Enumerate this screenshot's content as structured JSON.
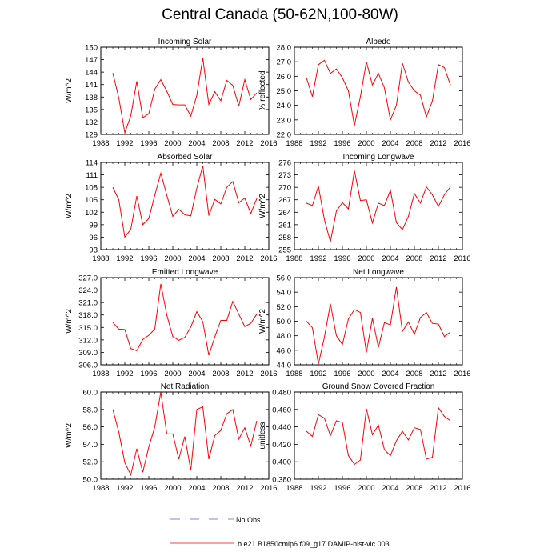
{
  "figure": {
    "title": "Central Canada (50-62N,100-80W)"
  },
  "legend": {
    "obs_label": "No Obs",
    "model_label": "b.e21.B1850cmip6.f09_g17.DAMIP-hist-vlc.003",
    "obs_color": "#6a5acd",
    "model_color": "#ff0000"
  },
  "chart_data": [
    {
      "type": "line",
      "title": "Incoming Solar",
      "ylabel": "W/m^2",
      "xlim": [
        1988,
        2016
      ],
      "xticks": [
        1988,
        1992,
        1996,
        2000,
        2004,
        2008,
        2012,
        2016
      ],
      "ylim": [
        129,
        150
      ],
      "yticks": [
        "129",
        "132",
        "135",
        "138",
        "141",
        "144",
        "147",
        "150"
      ],
      "x": [
        1990,
        1991,
        1992,
        1993,
        1994,
        1995,
        1996,
        1997,
        1998,
        1999,
        2000,
        2001,
        2002,
        2003,
        2004,
        2005,
        2006,
        2007,
        2008,
        2009,
        2010,
        2011,
        2012,
        2013,
        2014
      ],
      "values": [
        143.8,
        137.8,
        129.4,
        133.5,
        141.8,
        133.0,
        134.0,
        139.9,
        142.2,
        139.4,
        136.2,
        136.1,
        136.1,
        133.4,
        138.4,
        147.4,
        136.2,
        139.3,
        137.1,
        142.0,
        140.8,
        135.8,
        142.2,
        137.4,
        139.0
      ]
    },
    {
      "type": "line",
      "title": "Albedo",
      "ylabel": "% reflected",
      "xlim": [
        1988,
        2016
      ],
      "xticks": [
        1988,
        1992,
        1996,
        2000,
        2004,
        2008,
        2012,
        2016
      ],
      "ylim": [
        22.0,
        28.0
      ],
      "yticks": [
        "22.0",
        "23.0",
        "24.0",
        "25.0",
        "26.0",
        "27.0",
        "28.0"
      ],
      "x": [
        1990,
        1991,
        1992,
        1993,
        1994,
        1995,
        1996,
        1997,
        1998,
        1999,
        2000,
        2001,
        2002,
        2003,
        2004,
        2005,
        2006,
        2007,
        2008,
        2009,
        2010,
        2011,
        2012,
        2013,
        2014
      ],
      "values": [
        25.9,
        24.6,
        26.8,
        27.1,
        26.2,
        26.5,
        25.9,
        25.0,
        22.6,
        24.6,
        27.0,
        25.4,
        26.2,
        25.2,
        23.0,
        24.0,
        26.9,
        25.6,
        25.0,
        24.7,
        23.2,
        24.3,
        26.8,
        26.6,
        25.4
      ]
    },
    {
      "type": "line",
      "title": "Absorbed Solar",
      "ylabel": "W/m^2",
      "xlim": [
        1988,
        2016
      ],
      "xticks": [
        1988,
        1992,
        1996,
        2000,
        2004,
        2008,
        2012,
        2016
      ],
      "ylim": [
        93,
        114
      ],
      "yticks": [
        "93",
        "96",
        "99",
        "102",
        "105",
        "108",
        "111",
        "114"
      ],
      "x": [
        1990,
        1991,
        1992,
        1993,
        1994,
        1995,
        1996,
        1997,
        1998,
        1999,
        2000,
        2001,
        2002,
        2003,
        2004,
        2005,
        2006,
        2007,
        2008,
        2009,
        2010,
        2011,
        2012,
        2013,
        2014
      ],
      "values": [
        108.0,
        105.0,
        96.0,
        97.9,
        105.9,
        99.0,
        100.5,
        106.1,
        111.4,
        106.1,
        101.0,
        102.7,
        101.4,
        101.1,
        107.8,
        113.2,
        101.2,
        105.1,
        104.0,
        108.0,
        109.4,
        104.3,
        105.4,
        101.7,
        105.3
      ]
    },
    {
      "type": "line",
      "title": "Incoming Longwave",
      "ylabel": "W/m^2",
      "xlim": [
        1988,
        2016
      ],
      "xticks": [
        1988,
        1992,
        1996,
        2000,
        2004,
        2008,
        2012,
        2016
      ],
      "ylim": [
        255,
        276
      ],
      "yticks": [
        "255",
        "258",
        "261",
        "264",
        "267",
        "270",
        "273",
        "276"
      ],
      "x": [
        1990,
        1991,
        1992,
        1993,
        1994,
        1995,
        1996,
        1997,
        1998,
        1999,
        2000,
        2001,
        2002,
        2003,
        2004,
        2005,
        2006,
        2007,
        2008,
        2009,
        2010,
        2011,
        2012,
        2013,
        2014
      ],
      "values": [
        266.2,
        265.6,
        270.3,
        262.2,
        256.9,
        264.3,
        266.3,
        264.8,
        274.0,
        266.8,
        267.0,
        261.4,
        266.2,
        265.6,
        269.3,
        261.5,
        259.8,
        263.0,
        268.5,
        266.2,
        270.1,
        268.2,
        265.4,
        268.2,
        270.1
      ]
    },
    {
      "type": "line",
      "title": "Emitted Longwave",
      "ylabel": "W/m^2",
      "xlim": [
        1988,
        2016
      ],
      "xticks": [
        1988,
        1992,
        1996,
        2000,
        2004,
        2008,
        2012,
        2016
      ],
      "ylim": [
        306.0,
        327.0
      ],
      "yticks": [
        "306.0",
        "309.0",
        "312.0",
        "315.0",
        "318.0",
        "321.0",
        "324.0",
        "327.0"
      ],
      "x": [
        1990,
        1991,
        1992,
        1993,
        1994,
        1995,
        1996,
        1997,
        1998,
        1999,
        2000,
        2001,
        2002,
        2003,
        2004,
        2005,
        2006,
        2007,
        2008,
        2009,
        2010,
        2011,
        2012,
        2013,
        2014
      ],
      "values": [
        316.2,
        314.6,
        314.5,
        309.9,
        309.4,
        312.1,
        313.1,
        314.6,
        325.5,
        318.0,
        312.8,
        311.9,
        312.6,
        315.1,
        318.8,
        316.4,
        308.3,
        312.7,
        316.7,
        316.7,
        321.3,
        318.2,
        315.2,
        316.0,
        318.2
      ]
    },
    {
      "type": "line",
      "title": "Net Longwave",
      "ylabel": "W/m^2",
      "xlim": [
        1988,
        2016
      ],
      "xticks": [
        1988,
        1992,
        1996,
        2000,
        2004,
        2008,
        2012,
        2016
      ],
      "ylim": [
        44.0,
        56.0
      ],
      "yticks": [
        "44.0",
        "46.0",
        "48.0",
        "50.0",
        "52.0",
        "54.0",
        "56.0"
      ],
      "x": [
        1990,
        1991,
        1992,
        1993,
        1994,
        1995,
        1996,
        1997,
        1998,
        1999,
        2000,
        2001,
        2002,
        2003,
        2004,
        2005,
        2006,
        2007,
        2008,
        2009,
        2010,
        2011,
        2012,
        2013,
        2014
      ],
      "values": [
        50.0,
        49.1,
        44.1,
        47.8,
        52.4,
        48.0,
        46.8,
        50.3,
        51.6,
        51.2,
        45.7,
        50.4,
        46.4,
        49.8,
        49.5,
        54.7,
        48.6,
        49.9,
        48.2,
        50.5,
        51.2,
        49.7,
        49.6,
        47.9,
        48.5
      ]
    },
    {
      "type": "line",
      "title": "Net Radiation",
      "ylabel": "W/m^2",
      "xlim": [
        1988,
        2016
      ],
      "xticks": [
        1988,
        1992,
        1996,
        2000,
        2004,
        2008,
        2012,
        2016
      ],
      "ylim": [
        50.0,
        60.0
      ],
      "yticks": [
        "50.0",
        "52.0",
        "54.0",
        "56.0",
        "58.0",
        "60.0"
      ],
      "x": [
        1990,
        1991,
        1992,
        1993,
        1994,
        1995,
        1996,
        1997,
        1998,
        1999,
        2000,
        2001,
        2002,
        2003,
        2004,
        2005,
        2006,
        2007,
        2008,
        2009,
        2010,
        2011,
        2012,
        2013,
        2014
      ],
      "values": [
        58.0,
        55.4,
        51.9,
        50.5,
        53.5,
        50.8,
        53.7,
        56.0,
        60.0,
        55.2,
        55.2,
        52.3,
        54.9,
        51.0,
        58.0,
        58.3,
        52.3,
        55.0,
        55.6,
        57.5,
        58.0,
        54.6,
        55.9,
        53.8,
        56.7
      ]
    },
    {
      "type": "line",
      "title": "Ground Snow Covered Fraction",
      "ylabel": "unitless",
      "xlim": [
        1988,
        2016
      ],
      "xticks": [
        1988,
        1992,
        1996,
        2000,
        2004,
        2008,
        2012,
        2016
      ],
      "ylim": [
        0.38,
        0.48
      ],
      "yticks": [
        "0.380",
        "0.400",
        "0.420",
        "0.440",
        "0.460",
        "0.480"
      ],
      "x": [
        1990,
        1991,
        1992,
        1993,
        1994,
        1995,
        1996,
        1997,
        1998,
        1999,
        2000,
        2001,
        2002,
        2003,
        2004,
        2005,
        2006,
        2007,
        2008,
        2009,
        2010,
        2011,
        2012,
        2013,
        2014
      ],
      "values": [
        0.435,
        0.429,
        0.454,
        0.45,
        0.43,
        0.447,
        0.445,
        0.407,
        0.397,
        0.402,
        0.461,
        0.431,
        0.442,
        0.414,
        0.407,
        0.424,
        0.435,
        0.425,
        0.439,
        0.437,
        0.403,
        0.405,
        0.462,
        0.452,
        0.447
      ]
    }
  ]
}
